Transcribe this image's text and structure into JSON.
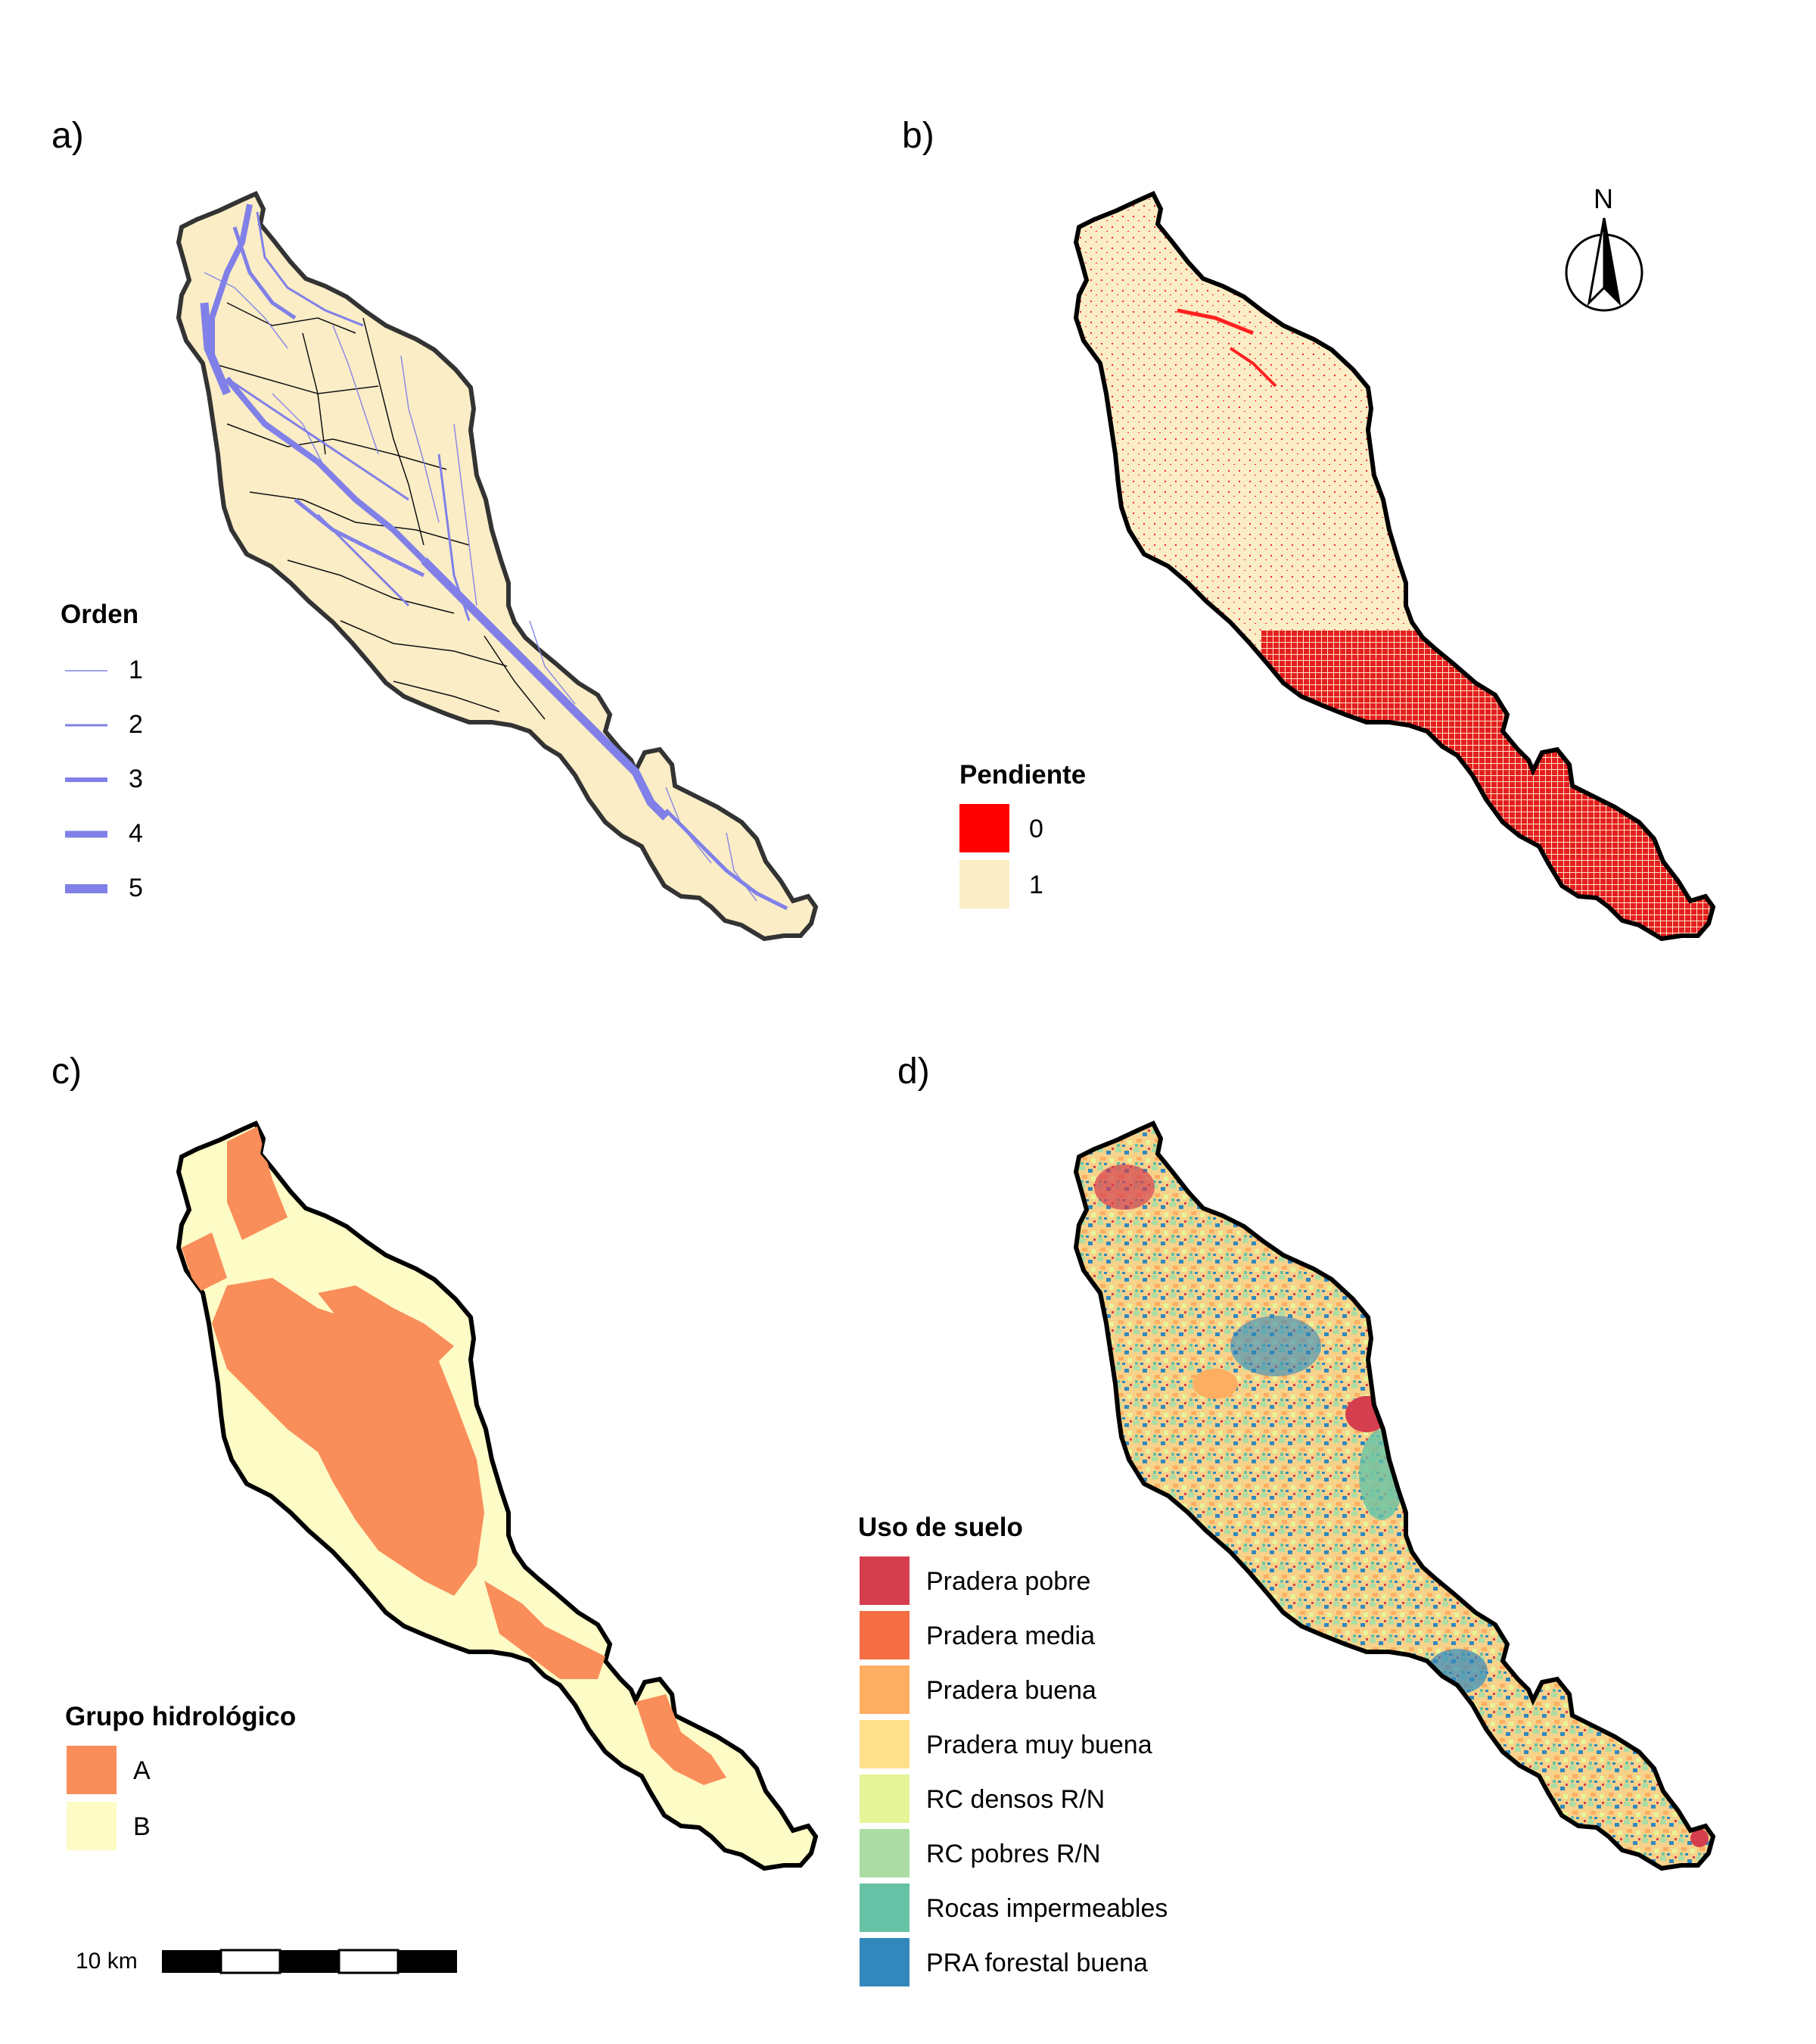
{
  "panels": {
    "a": {
      "label": "a)",
      "legend": {
        "title": "Orden",
        "items": [
          {
            "label": "1",
            "color": "#8080e8"
          },
          {
            "label": "2",
            "color": "#8080e8"
          },
          {
            "label": "3",
            "color": "#8080e8"
          },
          {
            "label": "4",
            "color": "#8080e8"
          },
          {
            "label": "5",
            "color": "#8080e8"
          }
        ]
      },
      "fill": "#fbedc6"
    },
    "b": {
      "label": "b)",
      "north_label": "N",
      "legend": {
        "title": "Pendiente",
        "items": [
          {
            "label": "0",
            "color": "#ff0000"
          },
          {
            "label": "1",
            "color": "#fbedc6"
          }
        ]
      }
    },
    "c": {
      "label": "c)",
      "legend": {
        "title": "Grupo hidrológico",
        "items": [
          {
            "label": "A",
            "color": "#f98e5a"
          },
          {
            "label": "B",
            "color": "#fdfbc6"
          }
        ]
      }
    },
    "d": {
      "label": "d)",
      "legend": {
        "title": "Uso de suelo",
        "items": [
          {
            "label": "Pradera pobre",
            "color": "#d53e4f"
          },
          {
            "label": "Pradera media",
            "color": "#f46d43"
          },
          {
            "label": "Pradera buena",
            "color": "#fdae61"
          },
          {
            "label": "Pradera muy buena",
            "color": "#fee08b"
          },
          {
            "label": "RC densos R/N",
            "color": "#e6f598"
          },
          {
            "label": "RC pobres R/N",
            "color": "#abdda4"
          },
          {
            "label": "Rocas impermeables",
            "color": "#66c2a5"
          },
          {
            "label": "PRA forestal buena",
            "color": "#3288bd"
          }
        ]
      }
    }
  },
  "scale_bar": {
    "label": "10 km"
  }
}
